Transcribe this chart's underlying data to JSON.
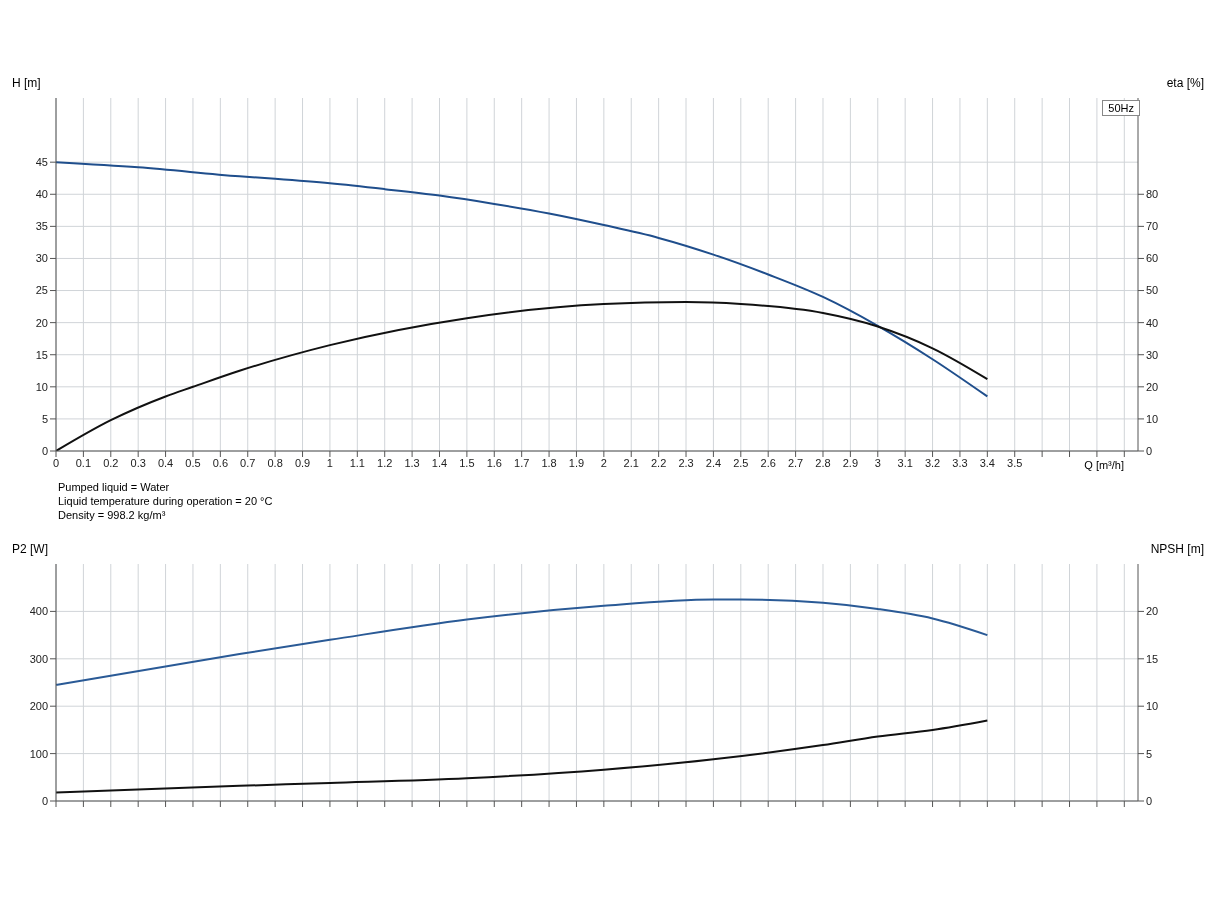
{
  "chart_data": [
    {
      "type": "line",
      "ylabel": "H [m]",
      "y2label": "eta [%]",
      "xlabel": "Q [m³/h]",
      "xlim": [
        0,
        3.95
      ],
      "xticks": [
        0,
        0.1,
        0.2,
        0.3,
        0.4,
        0.5,
        0.6,
        0.7,
        0.8,
        0.9,
        1.0,
        1.1,
        1.2,
        1.3,
        1.4,
        1.5,
        1.6,
        1.7,
        1.8,
        1.9,
        2.0,
        2.1,
        2.2,
        2.3,
        2.4,
        2.5,
        2.6,
        2.7,
        2.8,
        2.9,
        3.0,
        3.1,
        3.2,
        3.3,
        3.4,
        3.5,
        {
          "value": 3.6,
          "label": null
        },
        {
          "value": 3.7,
          "label": null
        },
        {
          "value": 3.8,
          "label": null
        },
        {
          "value": 3.9,
          "label": null
        }
      ],
      "ylim": [
        0,
        55
      ],
      "yticks": [
        0,
        5,
        10,
        15,
        20,
        25,
        30,
        35,
        40,
        45
      ],
      "y2lim": [
        0,
        110
      ],
      "y2ticks": [
        0,
        10,
        20,
        30,
        40,
        50,
        60,
        70,
        80
      ],
      "grid": true,
      "marker": "none",
      "line_style": "solid",
      "annotations": [
        "50Hz"
      ],
      "series": [
        {
          "color": "#1f4e8c",
          "x": [
            0,
            0.3,
            0.67,
            0.8,
            1.0,
            1.2,
            1.4,
            1.6,
            1.8,
            2.0,
            2.2,
            2.4,
            2.6,
            2.8,
            3.0,
            3.2,
            3.4
          ],
          "values": [
            45,
            44.2,
            42.8,
            42.4,
            41.7,
            40.8,
            39.8,
            38.5,
            37.0,
            35.2,
            33.2,
            30.6,
            27.5,
            24.0,
            19.5,
            14.3,
            8.5
          ]
        },
        {
          "color": "#111111",
          "axis": "y2",
          "x": [
            0,
            0.2,
            0.4,
            0.5,
            0.67,
            1.0,
            1.5,
            2.0,
            2.3,
            2.5,
            2.8,
            3.0,
            3.2,
            3.4
          ],
          "values": [
            0,
            9.6,
            17,
            20,
            25,
            33,
            41.4,
            45.8,
            46.4,
            45.8,
            43,
            38.8,
            32,
            22.4
          ]
        }
      ]
    },
    {
      "type": "line",
      "ylabel": "P2 [W]",
      "y2label": "NPSH [m]",
      "xlim": [
        0,
        3.95
      ],
      "xticks": [
        0,
        0.1,
        0.2,
        0.3,
        0.4,
        0.5,
        0.6,
        0.7,
        0.8,
        0.9,
        1.0,
        1.1,
        1.2,
        1.3,
        1.4,
        1.5,
        1.6,
        1.7,
        1.8,
        1.9,
        2.0,
        2.1,
        2.2,
        2.3,
        2.4,
        2.5,
        2.6,
        2.7,
        2.8,
        2.9,
        3.0,
        3.1,
        3.2,
        3.3,
        3.4,
        3.5,
        3.6,
        3.7,
        3.8,
        3.9
      ],
      "ylim": [
        0,
        500
      ],
      "yticks": [
        0,
        100,
        200,
        300,
        400
      ],
      "y2lim": [
        0,
        25
      ],
      "y2ticks": [
        0,
        5,
        10,
        15,
        20
      ],
      "grid": true,
      "marker": "none",
      "line_style": "solid",
      "tick_labels": "y",
      "annotations": [
        "Pumped liquid = Water",
        "Liquid temperature during operation = 20 °C",
        "Density = 998.2 kg/m³"
      ],
      "series": [
        {
          "color": "#2a5a96",
          "x": [
            0,
            0.67,
            1.0,
            1.5,
            2.0,
            2.4,
            2.5,
            2.8,
            3.0,
            3.2,
            3.4
          ],
          "values": [
            245,
            310,
            340,
            383,
            412,
            425,
            425,
            418,
            405,
            385,
            350
          ]
        },
        {
          "color": "#111111",
          "axis": "y2",
          "x": [
            0,
            0.67,
            1.0,
            1.5,
            2.0,
            2.4,
            2.8,
            3.0,
            3.2,
            3.4
          ],
          "values": [
            0.9,
            1.6,
            1.9,
            2.4,
            3.3,
            4.4,
            5.9,
            6.8,
            7.5,
            8.5
          ]
        }
      ]
    }
  ]
}
